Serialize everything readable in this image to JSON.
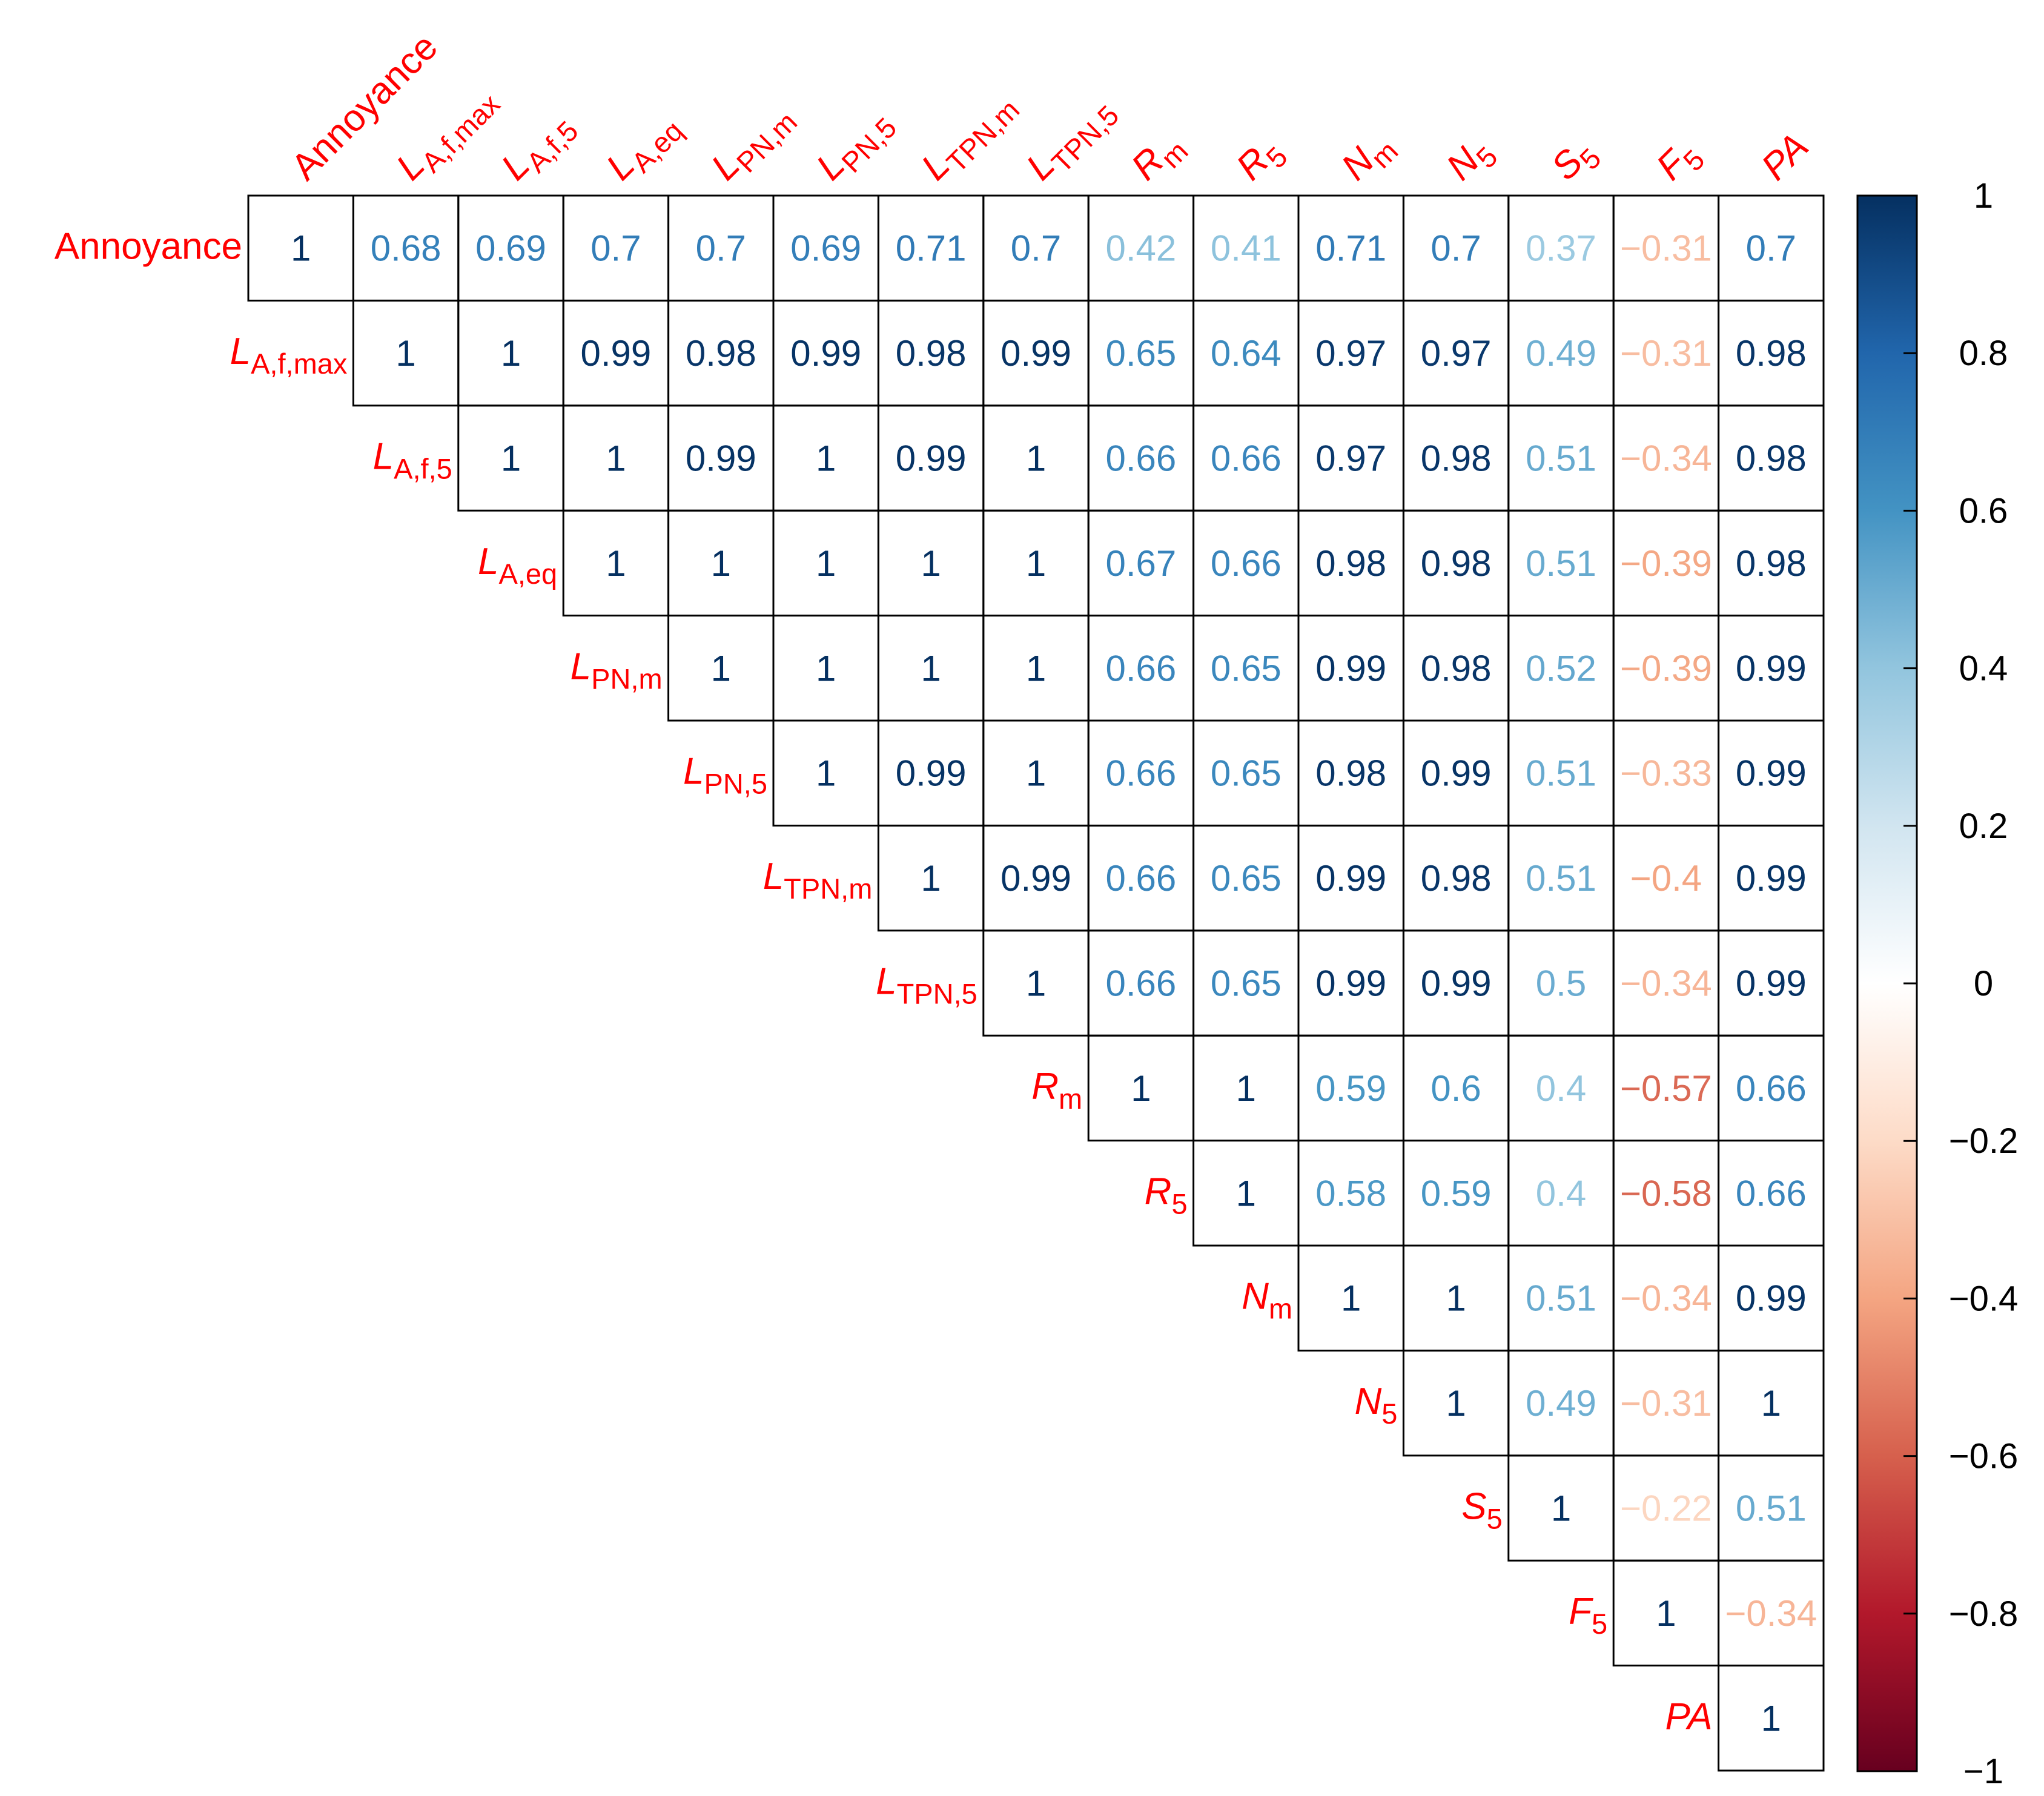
{
  "chart_data": {
    "type": "heatmap",
    "variables": [
      {
        "base": "Annoyance",
        "sub": "",
        "italic": false
      },
      {
        "base": "L",
        "sub": "A,f,max",
        "italic": true
      },
      {
        "base": "L",
        "sub": "A,f,5",
        "italic": true
      },
      {
        "base": "L",
        "sub": "A,eq",
        "italic": true
      },
      {
        "base": "L",
        "sub": "PN,m",
        "italic": true
      },
      {
        "base": "L",
        "sub": "PN,5",
        "italic": true
      },
      {
        "base": "L",
        "sub": "TPN,m",
        "italic": true
      },
      {
        "base": "L",
        "sub": "TPN,5",
        "italic": true
      },
      {
        "base": "R",
        "sub": "m",
        "italic": true
      },
      {
        "base": "R",
        "sub": "5",
        "italic": true
      },
      {
        "base": "N",
        "sub": "m",
        "italic": true
      },
      {
        "base": "N",
        "sub": "5",
        "italic": true
      },
      {
        "base": "S",
        "sub": "5",
        "italic": true
      },
      {
        "base": "F",
        "sub": "5",
        "italic": true
      },
      {
        "base": "PA",
        "sub": "",
        "italic": true
      }
    ],
    "matrix_upper": [
      [
        "1",
        "0.68",
        "0.69",
        "0.7",
        "0.7",
        "0.69",
        "0.71",
        "0.7",
        "0.42",
        "0.41",
        "0.71",
        "0.7",
        "0.37",
        "−0.31",
        "0.7"
      ],
      [
        "1",
        "1",
        "0.99",
        "0.98",
        "0.99",
        "0.98",
        "0.99",
        "0.65",
        "0.64",
        "0.97",
        "0.97",
        "0.49",
        "−0.31",
        "0.98"
      ],
      [
        "1",
        "1",
        "0.99",
        "1",
        "0.99",
        "1",
        "0.66",
        "0.66",
        "0.97",
        "0.98",
        "0.51",
        "−0.34",
        "0.98"
      ],
      [
        "1",
        "1",
        "1",
        "1",
        "1",
        "0.67",
        "0.66",
        "0.98",
        "0.98",
        "0.51",
        "−0.39",
        "0.98"
      ],
      [
        "1",
        "1",
        "1",
        "1",
        "0.66",
        "0.65",
        "0.99",
        "0.98",
        "0.52",
        "−0.39",
        "0.99"
      ],
      [
        "1",
        "0.99",
        "1",
        "0.66",
        "0.65",
        "0.98",
        "0.99",
        "0.51",
        "−0.33",
        "0.99"
      ],
      [
        "1",
        "0.99",
        "0.66",
        "0.65",
        "0.99",
        "0.98",
        "0.51",
        "−0.4",
        "0.99"
      ],
      [
        "1",
        "0.66",
        "0.65",
        "0.99",
        "0.99",
        "0.5",
        "−0.34",
        "0.99"
      ],
      [
        "1",
        "1",
        "0.59",
        "0.6",
        "0.4",
        "−0.57",
        "0.66"
      ],
      [
        "1",
        "0.58",
        "0.59",
        "0.4",
        "−0.58",
        "0.66"
      ],
      [
        "1",
        "1",
        "0.51",
        "−0.34",
        "0.99"
      ],
      [
        "1",
        "0.49",
        "−0.31",
        "1"
      ],
      [
        "1",
        "−0.22",
        "0.51"
      ],
      [
        "1",
        "−0.34"
      ],
      [
        "1"
      ]
    ],
    "colorbar": {
      "range": [
        -1,
        1
      ],
      "ticks": [
        "1",
        "0.8",
        "0.6",
        "0.4",
        "0.2",
        "0",
        "−0.2",
        "−0.4",
        "−0.6",
        "−0.8",
        "−1"
      ],
      "tick_values": [
        1,
        0.8,
        0.6,
        0.4,
        0.2,
        0,
        -0.2,
        -0.4,
        -0.6,
        -0.8,
        -1
      ],
      "colors": [
        "#67001F",
        "#B2182B",
        "#D6604D",
        "#F4A582",
        "#FDDBC7",
        "#FFFFFF",
        "#D1E5F0",
        "#92C5DE",
        "#4393C3",
        "#2166AC",
        "#053061"
      ]
    },
    "label_color": "#FF0000",
    "legend_position": "right"
  }
}
